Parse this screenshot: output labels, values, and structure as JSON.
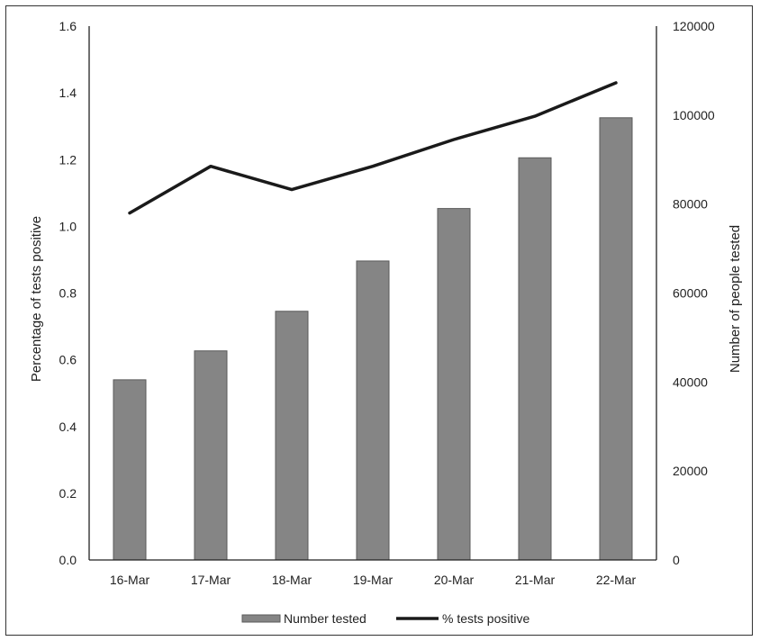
{
  "chart_data": {
    "type": "bar+line",
    "categories": [
      "16-Mar",
      "17-Mar",
      "18-Mar",
      "19-Mar",
      "20-Mar",
      "21-Mar",
      "22-Mar"
    ],
    "series": [
      {
        "name": "Number tested",
        "kind": "bar",
        "axis": "right",
        "color": "#858585",
        "values": [
          40500,
          47000,
          55900,
          67200,
          79000,
          90400,
          99400
        ]
      },
      {
        "name": "% tests positive",
        "kind": "line",
        "axis": "left",
        "color": "#1a1a1a",
        "values": [
          1.04,
          1.18,
          1.11,
          1.18,
          1.26,
          1.33,
          1.43
        ]
      }
    ],
    "y_left": {
      "label": "Percentage of tests positive",
      "range": [
        0,
        1.6
      ],
      "ticks": [
        "0.0",
        "0.2",
        "0.4",
        "0.6",
        "0.8",
        "1.0",
        "1.2",
        "1.4",
        "1.6"
      ]
    },
    "y_right": {
      "label": "Number of people tested",
      "range": [
        0,
        120000
      ],
      "ticks": [
        "0",
        "20000",
        "40000",
        "60000",
        "80000",
        "100000",
        "120000"
      ]
    },
    "grid": false,
    "legend_position": "bottom"
  }
}
